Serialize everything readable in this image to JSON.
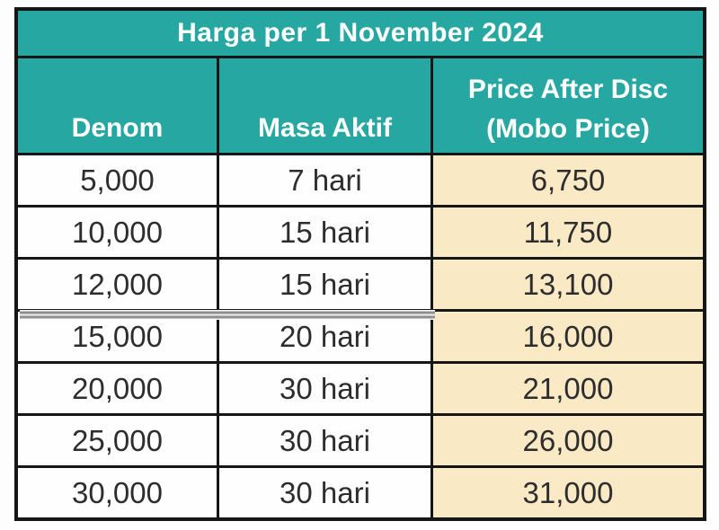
{
  "colors": {
    "header_teal": "#27a7a2",
    "price_cream": "#f9e9c5",
    "border_black": "#161616",
    "text_dark": "#2d2d2d",
    "text_white": "#ffffff",
    "artifact_gray": "#8f8f8f"
  },
  "table": {
    "title": "Harga per 1 November 2024",
    "columns": {
      "denom": "Denom",
      "masa_aktif": "Masa Aktif",
      "price_line1": "Price After Disc",
      "price_line2": "(Mobo Price)"
    },
    "rows": [
      {
        "denom": "5,000",
        "masa_aktif": "7 hari",
        "price": "6,750"
      },
      {
        "denom": "10,000",
        "masa_aktif": "15 hari",
        "price": "11,750"
      },
      {
        "denom": "12,000",
        "masa_aktif": "15 hari",
        "price": "13,100"
      },
      {
        "denom": "15,000",
        "masa_aktif": "20 hari",
        "price": "16,000"
      },
      {
        "denom": "20,000",
        "masa_aktif": "30 hari",
        "price": "21,000"
      },
      {
        "denom": "25,000",
        "masa_aktif": "30 hari",
        "price": "26,000"
      },
      {
        "denom": "30,000",
        "masa_aktif": "30 hari",
        "price": "31,000"
      }
    ]
  }
}
